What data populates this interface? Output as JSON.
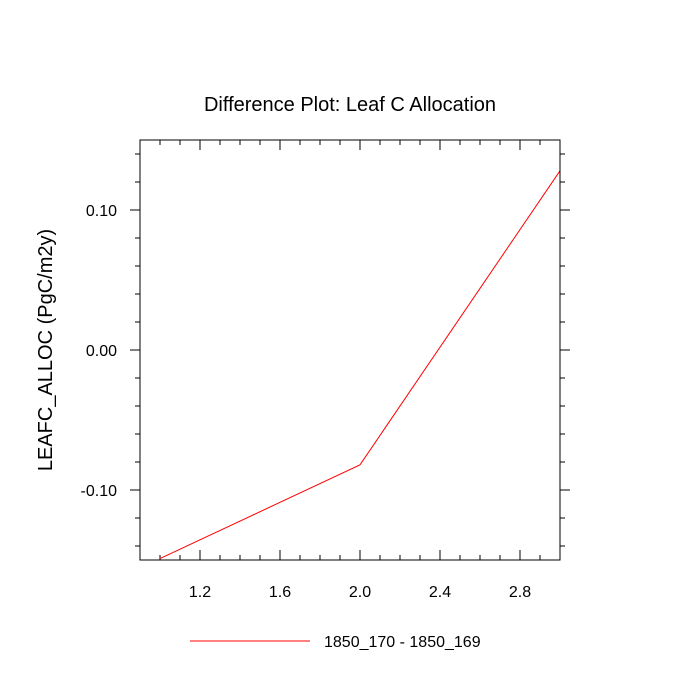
{
  "chart_data": {
    "type": "line",
    "title": "Difference Plot: Leaf C Allocation",
    "xlabel": "",
    "ylabel": "LEAFC_ALLOC  (PgC/m2y)",
    "xlim": [
      0.9,
      3.0
    ],
    "ylim": [
      -0.15,
      0.15
    ],
    "x_ticks": [
      1.2,
      1.6,
      2.0,
      2.4,
      2.8
    ],
    "x_tick_labels": [
      "1.2",
      "1.6",
      "2.0",
      "2.4",
      "2.8"
    ],
    "y_ticks": [
      -0.1,
      0.0,
      0.1
    ],
    "y_tick_labels": [
      "-0.10",
      "0.00",
      "0.10"
    ],
    "grid": false,
    "legend_position": "bottom",
    "series": [
      {
        "name": "1850_170 - 1850_169",
        "color": "#ff0000",
        "x": [
          1.0,
          2.0,
          3.0
        ],
        "y": [
          -0.149,
          -0.082,
          0.128
        ]
      }
    ]
  }
}
